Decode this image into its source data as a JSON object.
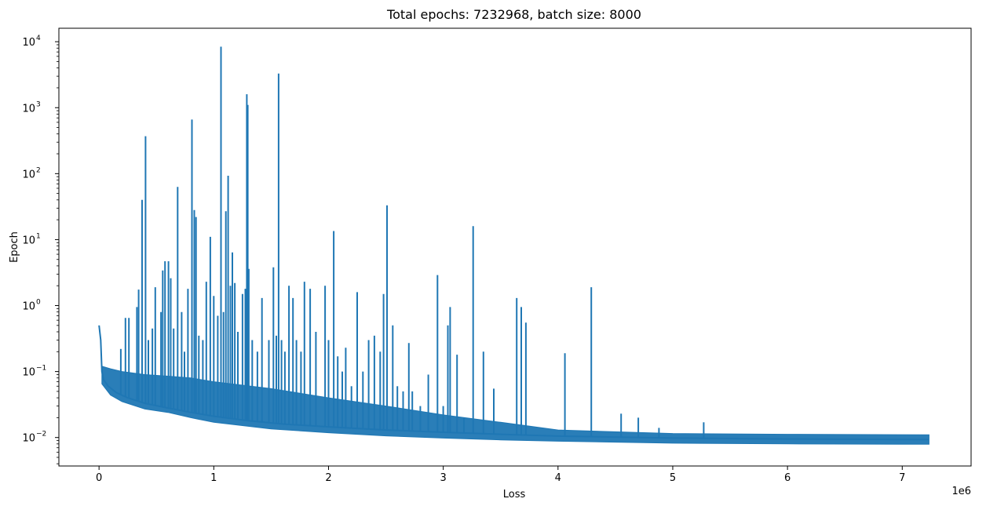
{
  "chart_data": {
    "type": "line",
    "title": "Total epochs: 7232968, batch size: 8000",
    "xlabel": "Loss",
    "ylabel": "Epoch",
    "x_offset_label": "1e6",
    "xlim": [
      -350000,
      7600000
    ],
    "ylim": [
      0.0037,
      16000
    ],
    "yscale": "log",
    "grid": false,
    "x_ticks": [
      0,
      1000000,
      2000000,
      3000000,
      4000000,
      5000000,
      6000000,
      7000000
    ],
    "x_tick_labels": [
      "0",
      "1",
      "2",
      "3",
      "4",
      "5",
      "6",
      "7"
    ],
    "y_ticks": [
      0.01,
      0.1,
      1,
      10,
      100,
      1000,
      10000
    ],
    "y_tick_exponents": [
      "−2",
      "−1",
      "0",
      "1",
      "2",
      "3",
      "4"
    ],
    "y_tick_base": "10",
    "series_color": "#1f77b4",
    "series": [
      {
        "baseline": [
          [
            0,
            0.5
          ],
          [
            15000,
            0.3
          ],
          [
            25000,
            0.1
          ],
          [
            40000,
            0.075
          ],
          [
            80000,
            0.06
          ],
          [
            150000,
            0.048
          ],
          [
            250000,
            0.04
          ],
          [
            400000,
            0.033
          ],
          [
            600000,
            0.028
          ],
          [
            800000,
            0.024
          ],
          [
            1000000,
            0.021
          ],
          [
            1300000,
            0.018
          ],
          [
            1600000,
            0.016
          ],
          [
            2000000,
            0.0145
          ],
          [
            2500000,
            0.013
          ],
          [
            3000000,
            0.012
          ],
          [
            3500000,
            0.0112
          ],
          [
            4000000,
            0.0105
          ],
          [
            5000000,
            0.0098
          ],
          [
            6000000,
            0.0095
          ],
          [
            7232968,
            0.0093
          ]
        ],
        "band_low": [
          [
            25000,
            0.065
          ],
          [
            100000,
            0.044
          ],
          [
            200000,
            0.035
          ],
          [
            400000,
            0.027
          ],
          [
            600000,
            0.024
          ],
          [
            800000,
            0.02
          ],
          [
            1000000,
            0.017
          ],
          [
            1500000,
            0.0135
          ],
          [
            2000000,
            0.0118
          ],
          [
            2500000,
            0.0106
          ],
          [
            3000000,
            0.0098
          ],
          [
            3500000,
            0.0092
          ],
          [
            4000000,
            0.0088
          ],
          [
            5000000,
            0.0082
          ],
          [
            6000000,
            0.008
          ],
          [
            7232968,
            0.0079
          ]
        ],
        "band_high": [
          [
            25000,
            0.12
          ],
          [
            100000,
            0.11
          ],
          [
            200000,
            0.1
          ],
          [
            400000,
            0.09
          ],
          [
            600000,
            0.085
          ],
          [
            800000,
            0.08
          ],
          [
            1000000,
            0.07
          ],
          [
            1500000,
            0.055
          ],
          [
            2000000,
            0.04
          ],
          [
            2500000,
            0.03
          ],
          [
            3000000,
            0.022
          ],
          [
            3500000,
            0.017
          ],
          [
            4000000,
            0.013
          ],
          [
            4300000,
            0.0125
          ],
          [
            5000000,
            0.0115
          ],
          [
            6000000,
            0.0112
          ],
          [
            7232968,
            0.011
          ]
        ],
        "spikes": [
          [
            190000,
            0.22
          ],
          [
            230000,
            0.65
          ],
          [
            260000,
            0.65
          ],
          [
            330000,
            0.95
          ],
          [
            345000,
            1.75
          ],
          [
            375000,
            40
          ],
          [
            405000,
            370
          ],
          [
            430000,
            0.3
          ],
          [
            465000,
            0.45
          ],
          [
            490000,
            1.9
          ],
          [
            540000,
            0.8
          ],
          [
            555000,
            3.4
          ],
          [
            575000,
            4.7
          ],
          [
            605000,
            4.7
          ],
          [
            625000,
            2.6
          ],
          [
            650000,
            0.45
          ],
          [
            685000,
            63
          ],
          [
            720000,
            0.8
          ],
          [
            745000,
            0.2
          ],
          [
            775000,
            1.8
          ],
          [
            810000,
            660
          ],
          [
            830000,
            28
          ],
          [
            845000,
            22
          ],
          [
            870000,
            0.35
          ],
          [
            905000,
            0.3
          ],
          [
            935000,
            2.3
          ],
          [
            970000,
            11
          ],
          [
            1000000,
            1.4
          ],
          [
            1035000,
            0.7
          ],
          [
            1063000,
            8400
          ],
          [
            1085000,
            0.8
          ],
          [
            1105000,
            27
          ],
          [
            1125000,
            93
          ],
          [
            1145000,
            2.0
          ],
          [
            1162000,
            6.4
          ],
          [
            1183000,
            2.2
          ],
          [
            1210000,
            0.4
          ],
          [
            1250000,
            1.5
          ],
          [
            1275000,
            1.8
          ],
          [
            1288000,
            1600
          ],
          [
            1296000,
            1100
          ],
          [
            1305000,
            3.6
          ],
          [
            1335000,
            0.3
          ],
          [
            1380000,
            0.2
          ],
          [
            1420000,
            1.3
          ],
          [
            1480000,
            0.3
          ],
          [
            1520000,
            3.8
          ],
          [
            1545000,
            0.35
          ],
          [
            1565000,
            3300
          ],
          [
            1590000,
            0.3
          ],
          [
            1620000,
            0.2
          ],
          [
            1655000,
            2.0
          ],
          [
            1690000,
            1.3
          ],
          [
            1720000,
            0.3
          ],
          [
            1760000,
            0.2
          ],
          [
            1790000,
            2.3
          ],
          [
            1840000,
            1.8
          ],
          [
            1890000,
            0.4
          ],
          [
            1970000,
            2.0
          ],
          [
            2000000,
            0.3
          ],
          [
            2045000,
            13.5
          ],
          [
            2080000,
            0.17
          ],
          [
            2120000,
            0.1
          ],
          [
            2150000,
            0.23
          ],
          [
            2200000,
            0.06
          ],
          [
            2250000,
            1.6
          ],
          [
            2300000,
            0.1
          ],
          [
            2350000,
            0.3
          ],
          [
            2400000,
            0.35
          ],
          [
            2450000,
            0.2
          ],
          [
            2480000,
            1.5
          ],
          [
            2510000,
            33
          ],
          [
            2560000,
            0.5
          ],
          [
            2600000,
            0.06
          ],
          [
            2650000,
            0.05
          ],
          [
            2700000,
            0.27
          ],
          [
            2730000,
            0.05
          ],
          [
            2800000,
            0.03
          ],
          [
            2870000,
            0.09
          ],
          [
            2950000,
            2.9
          ],
          [
            3000000,
            0.03
          ],
          [
            3040000,
            0.5
          ],
          [
            3060000,
            0.95
          ],
          [
            3120000,
            0.18
          ],
          [
            3180000,
            0.02
          ],
          [
            3260000,
            16
          ],
          [
            3350000,
            0.2
          ],
          [
            3440000,
            0.055
          ],
          [
            3640000,
            1.3
          ],
          [
            3680000,
            0.95
          ],
          [
            3720000,
            0.55
          ],
          [
            4060000,
            0.19
          ],
          [
            4290000,
            1.9
          ],
          [
            4550000,
            0.023
          ],
          [
            4700000,
            0.02
          ],
          [
            4880000,
            0.014
          ],
          [
            5270000,
            0.017
          ]
        ]
      }
    ]
  }
}
